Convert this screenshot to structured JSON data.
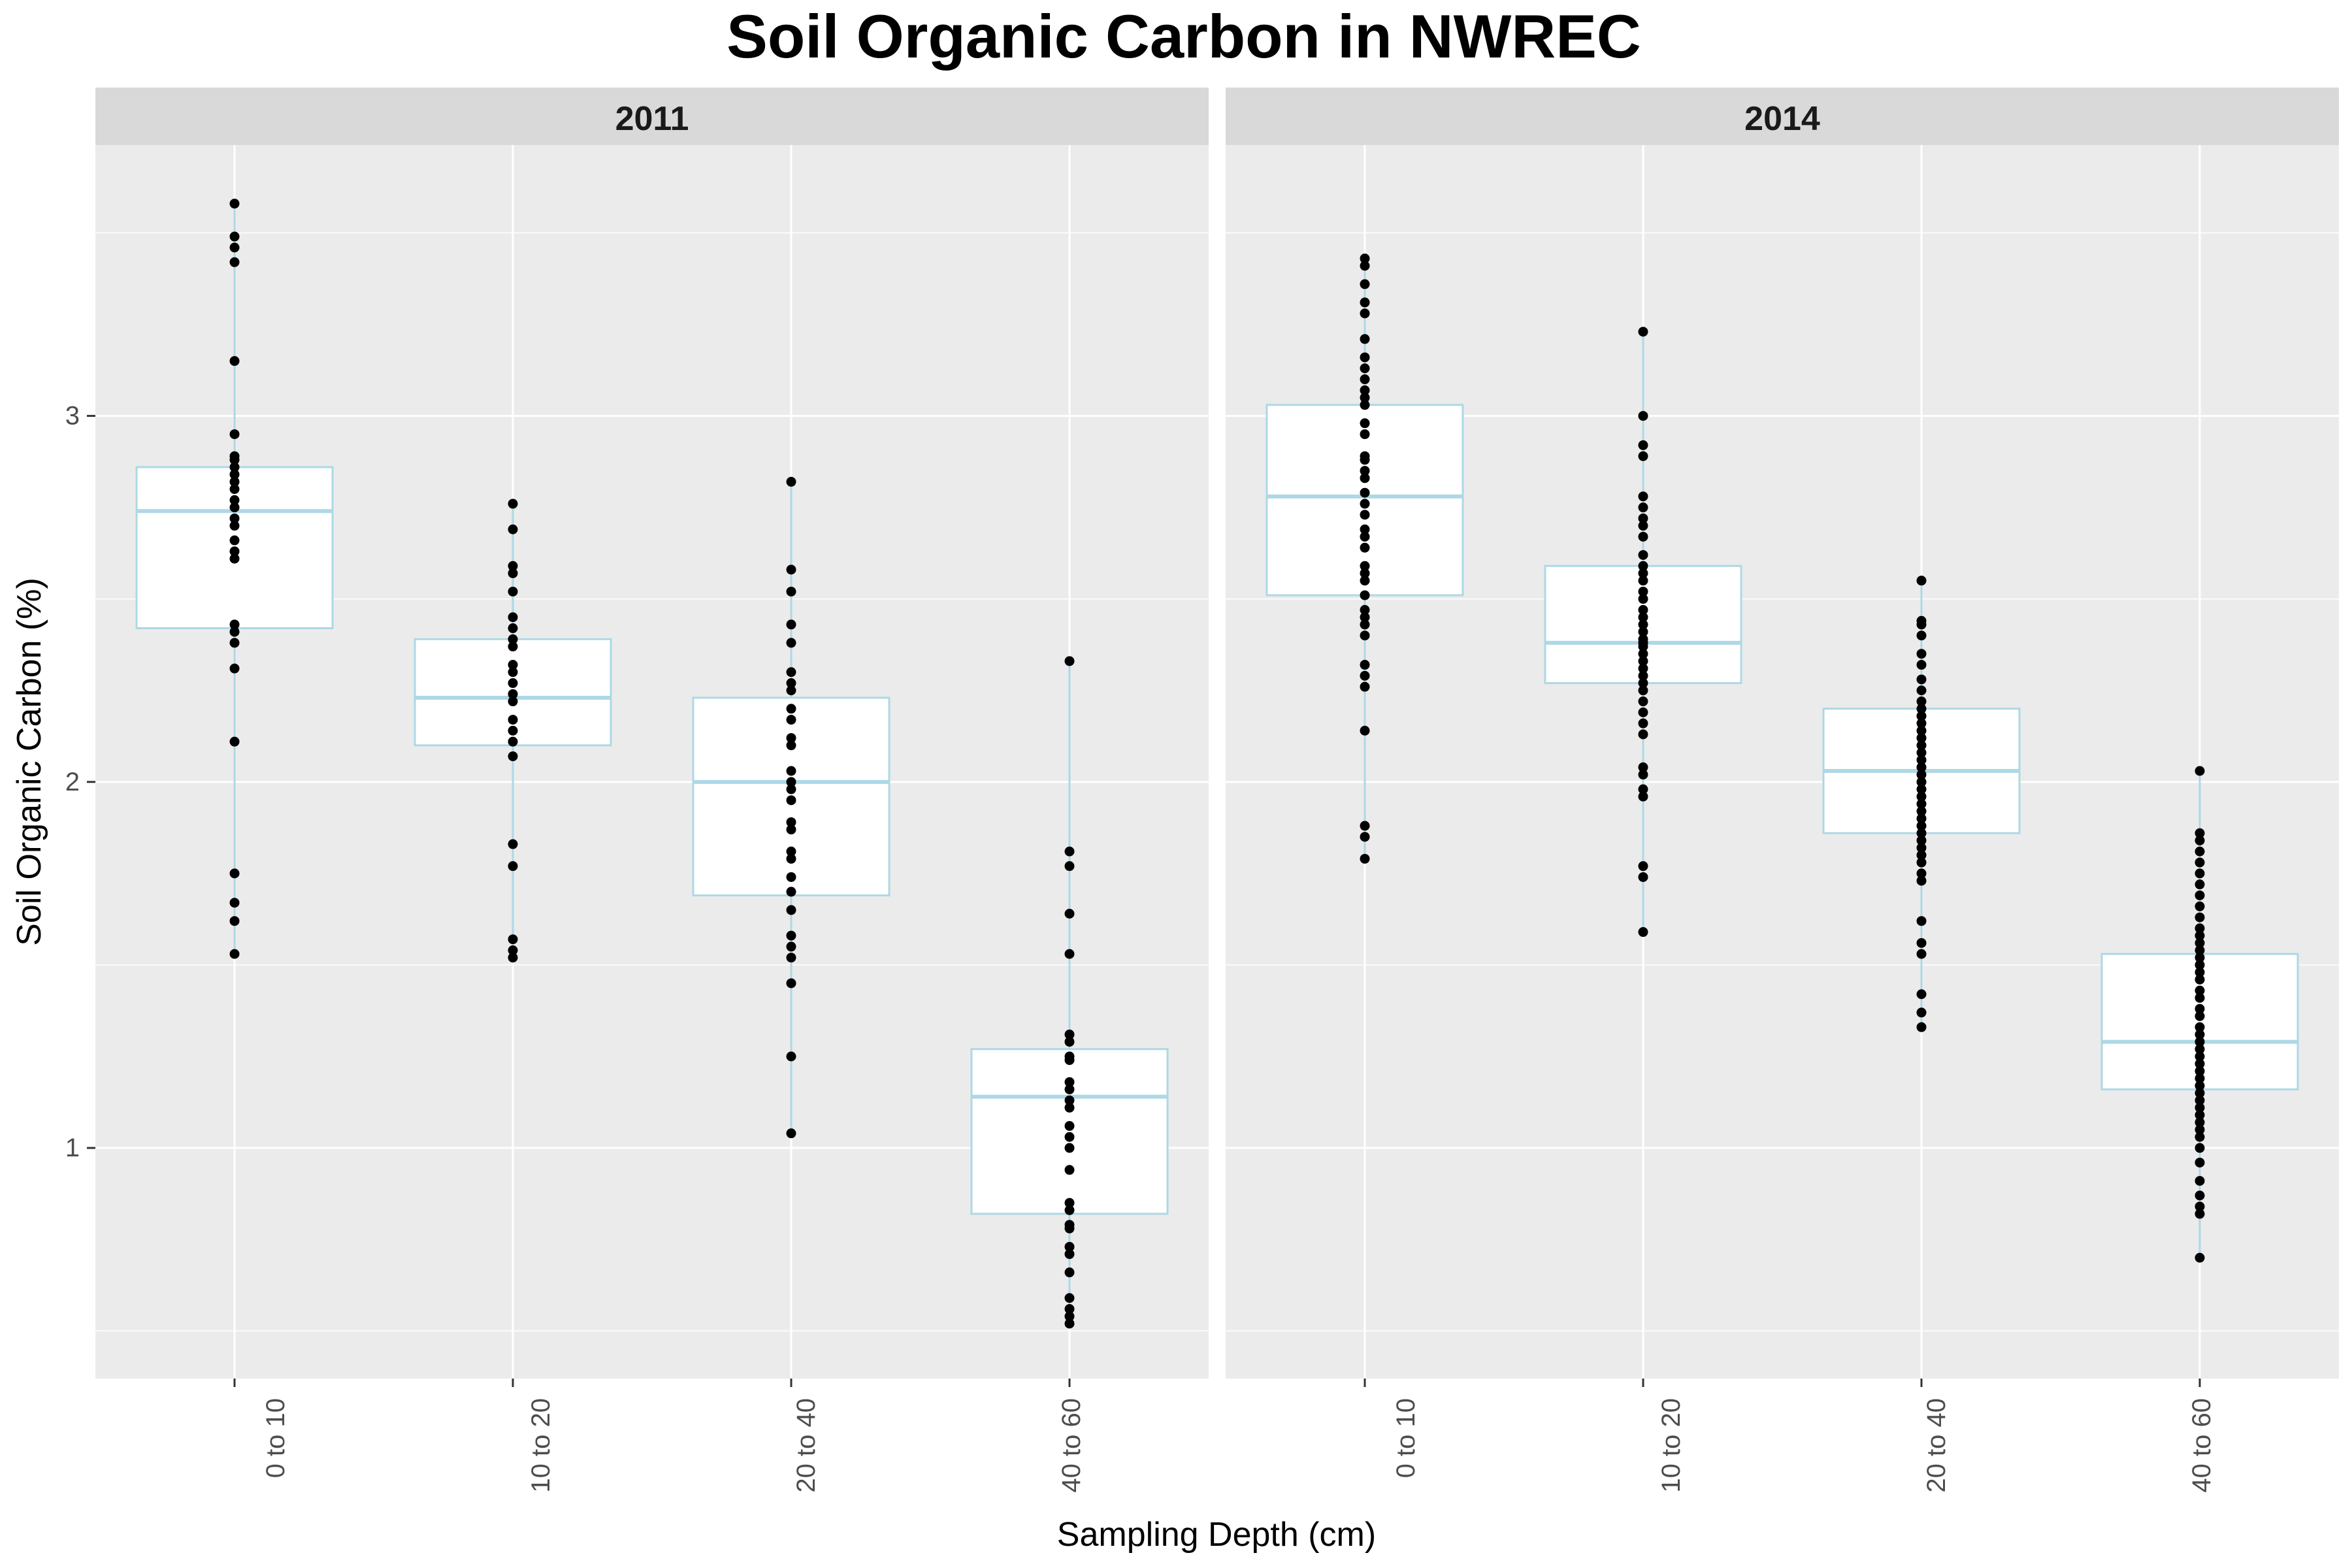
{
  "chart_data": {
    "type": "boxplot",
    "title": "Soil Organic Carbon in NWREC",
    "xlabel": "Sampling Depth (cm)",
    "ylabel": "Soil Organic Carbon (%)",
    "ylim": [
      0.37,
      3.74
    ],
    "yticks": [
      1,
      2,
      3
    ],
    "grid": true,
    "categories": [
      "0 to 10",
      "10 to 20",
      "20 to 40",
      "40 to 60"
    ],
    "box_color": "#add8e6",
    "point_color": "#000000",
    "panel_background": "#ebebeb",
    "strip_background": "#d9d9d9",
    "facets": [
      {
        "label": "2011",
        "boxes": [
          {
            "category": "0 to 10",
            "lower_whisker": 1.52,
            "q1": 2.42,
            "median": 2.74,
            "q3": 2.86,
            "upper_whisker": 3.58,
            "points": [
              3.58,
              3.49,
              3.46,
              3.42,
              3.15,
              2.95,
              2.89,
              2.88,
              2.86,
              2.84,
              2.82,
              2.8,
              2.77,
              2.75,
              2.72,
              2.7,
              2.66,
              2.63,
              2.61,
              2.43,
              2.41,
              2.38,
              2.31,
              2.11,
              1.75,
              1.67,
              1.62,
              1.53
            ]
          },
          {
            "category": "10 to 20",
            "lower_whisker": 1.52,
            "q1": 2.1,
            "median": 2.23,
            "q3": 2.39,
            "upper_whisker": 2.76,
            "points": [
              2.76,
              2.69,
              2.59,
              2.57,
              2.52,
              2.45,
              2.42,
              2.39,
              2.37,
              2.32,
              2.3,
              2.27,
              2.24,
              2.22,
              2.17,
              2.14,
              2.11,
              2.07,
              1.83,
              1.77,
              1.57,
              1.54,
              1.52
            ]
          },
          {
            "category": "20 to 40",
            "lower_whisker": 1.04,
            "q1": 1.69,
            "median": 2.0,
            "q3": 2.23,
            "upper_whisker": 2.82,
            "points": [
              2.82,
              2.58,
              2.52,
              2.43,
              2.38,
              2.3,
              2.27,
              2.25,
              2.2,
              2.17,
              2.12,
              2.1,
              2.03,
              2.0,
              1.98,
              1.95,
              1.89,
              1.87,
              1.81,
              1.79,
              1.74,
              1.7,
              1.65,
              1.58,
              1.55,
              1.52,
              1.45,
              1.25,
              1.04
            ]
          },
          {
            "category": "40 to 60",
            "lower_whisker": 0.52,
            "q1": 0.82,
            "median": 1.14,
            "q3": 1.27,
            "upper_whisker": 2.33,
            "points": [
              2.33,
              1.81,
              1.77,
              1.64,
              1.53,
              1.31,
              1.29,
              1.25,
              1.24,
              1.18,
              1.16,
              1.13,
              1.11,
              1.06,
              1.03,
              1.0,
              0.94,
              0.85,
              0.83,
              0.79,
              0.78,
              0.73,
              0.71,
              0.66,
              0.59,
              0.56,
              0.54,
              0.52
            ]
          }
        ]
      },
      {
        "label": "2014",
        "boxes": [
          {
            "category": "0 to 10",
            "lower_whisker": 1.79,
            "q1": 2.51,
            "median": 2.78,
            "q3": 3.03,
            "upper_whisker": 3.43,
            "points": [
              3.43,
              3.41,
              3.36,
              3.31,
              3.28,
              3.21,
              3.16,
              3.13,
              3.1,
              3.07,
              3.05,
              3.03,
              2.98,
              2.95,
              2.89,
              2.88,
              2.85,
              2.83,
              2.79,
              2.76,
              2.73,
              2.69,
              2.67,
              2.64,
              2.59,
              2.57,
              2.55,
              2.51,
              2.47,
              2.45,
              2.43,
              2.4,
              2.32,
              2.29,
              2.26,
              2.14,
              1.88,
              1.85,
              1.79
            ]
          },
          {
            "category": "10 to 20",
            "lower_whisker": 1.59,
            "q1": 2.27,
            "median": 2.38,
            "q3": 2.59,
            "upper_whisker": 3.23,
            "points": [
              3.23,
              3.0,
              2.92,
              2.89,
              2.78,
              2.75,
              2.72,
              2.7,
              2.67,
              2.62,
              2.59,
              2.57,
              2.55,
              2.52,
              2.5,
              2.47,
              2.45,
              2.43,
              2.41,
              2.39,
              2.38,
              2.37,
              2.35,
              2.33,
              2.31,
              2.29,
              2.27,
              2.25,
              2.22,
              2.19,
              2.16,
              2.13,
              2.04,
              2.02,
              1.98,
              1.96,
              1.77,
              1.74,
              1.59
            ]
          },
          {
            "category": "20 to 40",
            "lower_whisker": 1.32,
            "q1": 1.86,
            "median": 2.03,
            "q3": 2.2,
            "upper_whisker": 2.55,
            "points": [
              2.55,
              2.44,
              2.43,
              2.4,
              2.35,
              2.32,
              2.28,
              2.25,
              2.22,
              2.2,
              2.18,
              2.16,
              2.14,
              2.12,
              2.1,
              2.08,
              2.06,
              2.04,
              2.02,
              2.0,
              1.98,
              1.96,
              1.94,
              1.92,
              1.9,
              1.88,
              1.86,
              1.84,
              1.82,
              1.8,
              1.78,
              1.75,
              1.73,
              1.62,
              1.56,
              1.53,
              1.42,
              1.37,
              1.33
            ]
          },
          {
            "category": "40 to 60",
            "lower_whisker": 0.7,
            "q1": 1.16,
            "median": 1.29,
            "q3": 1.53,
            "upper_whisker": 2.03,
            "points": [
              2.03,
              1.86,
              1.84,
              1.81,
              1.78,
              1.75,
              1.72,
              1.69,
              1.66,
              1.63,
              1.6,
              1.58,
              1.56,
              1.54,
              1.52,
              1.5,
              1.48,
              1.46,
              1.43,
              1.41,
              1.38,
              1.36,
              1.33,
              1.31,
              1.29,
              1.27,
              1.25,
              1.23,
              1.21,
              1.19,
              1.17,
              1.15,
              1.13,
              1.11,
              1.09,
              1.07,
              1.05,
              1.03,
              1.0,
              0.96,
              0.91,
              0.87,
              0.84,
              0.82,
              0.7
            ]
          }
        ]
      }
    ]
  }
}
